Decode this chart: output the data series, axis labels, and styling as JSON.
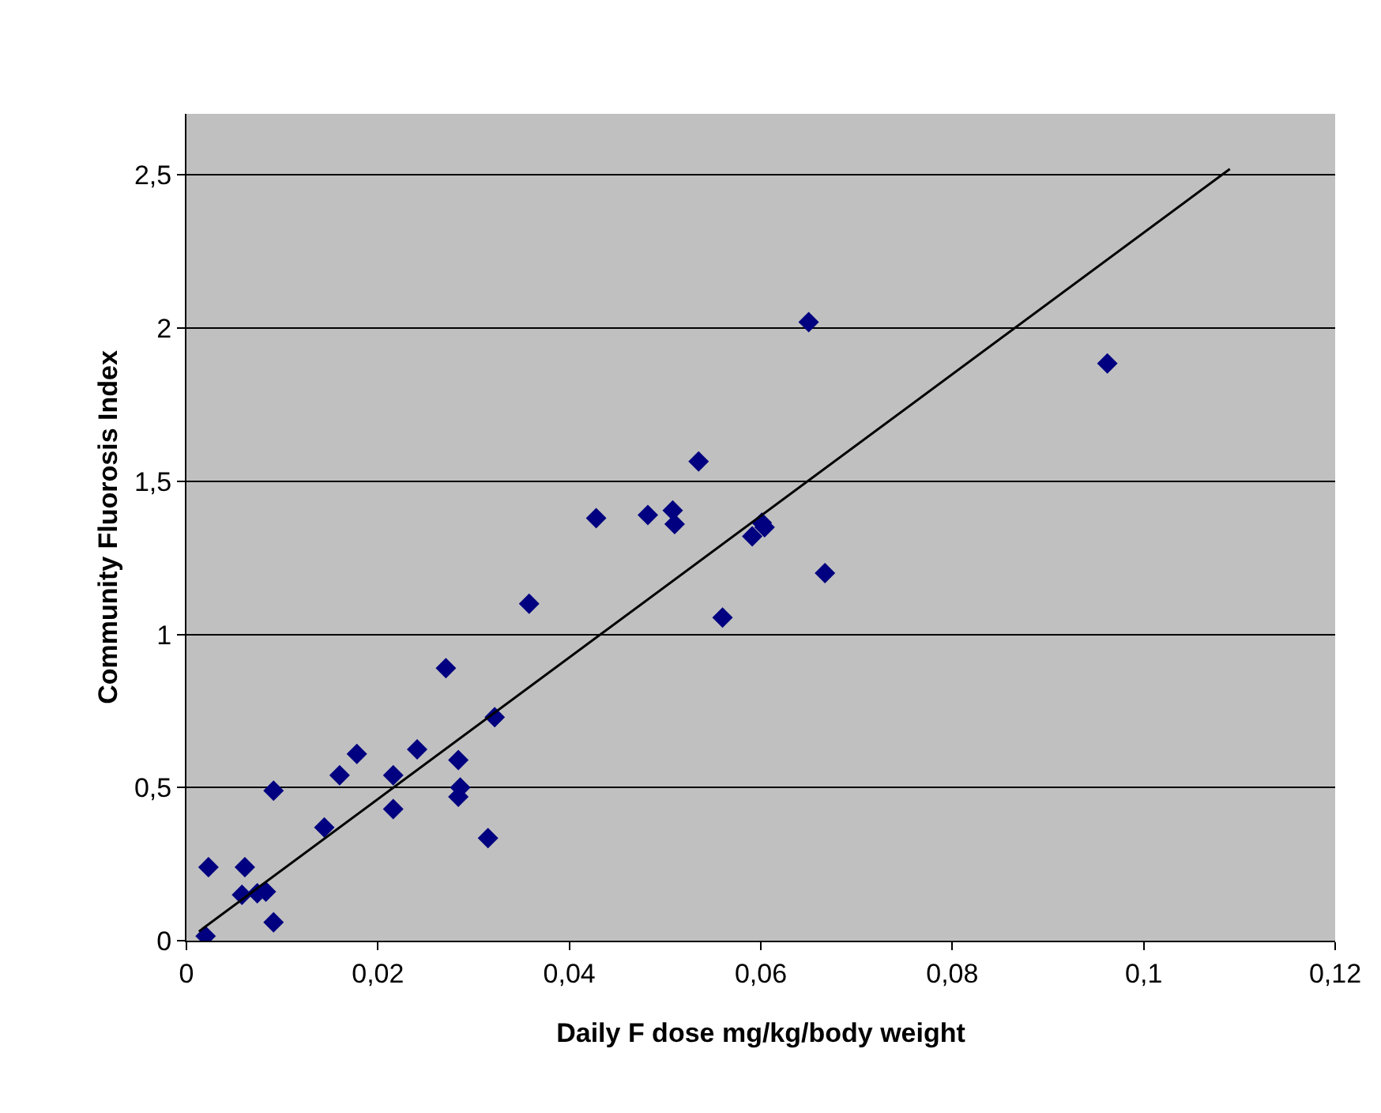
{
  "chart_data": {
    "type": "scatter",
    "xlabel": "Daily F dose mg/kg/body weight",
    "ylabel": "Community Fluorosis Index",
    "xlim": [
      0,
      0.12
    ],
    "ylim": [
      0,
      2.7
    ],
    "xticks": [
      0,
      {
        "value": 0.02,
        "label": "0,02"
      },
      {
        "value": 0.04,
        "label": "0,04"
      },
      {
        "value": 0.06,
        "label": "0,06"
      },
      {
        "value": 0.08,
        "label": "0,08"
      },
      {
        "value": 0.1,
        "label": "0,1"
      },
      {
        "value": 0.12,
        "label": "0,12"
      }
    ],
    "yticks": [
      0,
      {
        "value": 0.5,
        "label": "0,5"
      },
      1,
      {
        "value": 1.5,
        "label": "1,5"
      },
      2,
      {
        "value": 2.5,
        "label": "2,5"
      }
    ],
    "grid": "y",
    "legend": false,
    "series": [
      {
        "marker": "diamond",
        "color": "#000080",
        "x": [
          0.002,
          0.0023,
          0.0058,
          0.0061,
          0.0074,
          0.0083,
          0.0091,
          0.0091,
          0.0144,
          0.016,
          0.0178,
          0.0216,
          0.0216,
          0.0241,
          0.0271,
          0.0284,
          0.0286,
          0.0284,
          0.0315,
          0.0322,
          0.0358,
          0.0428,
          0.0482,
          0.0508,
          0.051,
          0.0535,
          0.056,
          0.0591,
          0.0601,
          0.0604,
          0.065,
          0.0667,
          0.0962
        ],
        "values": [
          0.015,
          0.24,
          0.15,
          0.24,
          0.155,
          0.16,
          0.49,
          0.06,
          0.37,
          0.54,
          0.61,
          0.54,
          0.43,
          0.625,
          0.89,
          0.59,
          0.5,
          0.47,
          0.335,
          0.73,
          1.1,
          1.38,
          1.39,
          1.405,
          1.36,
          1.565,
          1.055,
          1.32,
          1.365,
          1.35,
          2.02,
          1.2,
          1.885
        ]
      },
      {
        "type": "line",
        "color": "#000000",
        "x": [
          0.0013,
          0.109
        ],
        "values": [
          0.03,
          2.52
        ]
      }
    ]
  }
}
